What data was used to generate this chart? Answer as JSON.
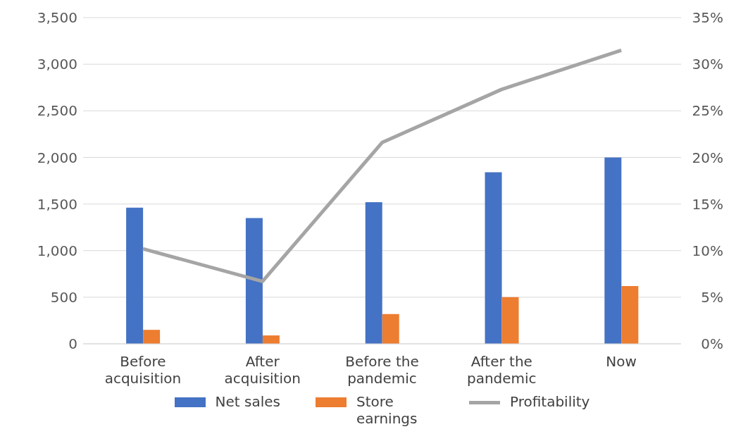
{
  "chart_data": {
    "type": "bar",
    "categories": [
      "Before acquisition",
      "After acquisition",
      "Before the pandemic",
      "After the pandemic",
      "Now"
    ],
    "series": [
      {
        "name": "Net sales",
        "color": "#4472c4",
        "values": [
          1460,
          1350,
          1520,
          1840,
          2000
        ]
      },
      {
        "name": "Store earnings",
        "color": "#ed7d31",
        "values": [
          150,
          90,
          320,
          500,
          620
        ]
      },
      {
        "name": "Profitability",
        "color": "#a5a5a5",
        "type": "line",
        "axis": "y2",
        "values": [
          10.2,
          6.7,
          21.6,
          27.3,
          31.5
        ]
      }
    ],
    "ylim": [
      0,
      3500
    ],
    "yticks": [
      {
        "value": 0,
        "label": "0"
      },
      {
        "value": 500,
        "label": "500"
      },
      {
        "value": 1000,
        "label": "1,000"
      },
      {
        "value": 1500,
        "label": "1,500"
      },
      {
        "value": 2000,
        "label": "2,000"
      },
      {
        "value": 2500,
        "label": "2,500"
      },
      {
        "value": 3000,
        "label": "3,000"
      },
      {
        "value": 3500,
        "label": "3,500"
      }
    ],
    "y2lim": [
      0,
      35
    ],
    "y2ticks": [
      {
        "value": 0,
        "label": "0%"
      },
      {
        "value": 5,
        "label": "5%"
      },
      {
        "value": 10,
        "label": "10%"
      },
      {
        "value": 15,
        "label": "15%"
      },
      {
        "value": 20,
        "label": "20%"
      },
      {
        "value": 25,
        "label": "25%"
      },
      {
        "value": 30,
        "label": "30%"
      },
      {
        "value": 35,
        "label": "35%"
      }
    ],
    "grid": "y",
    "legend": "bottom",
    "marker": "none",
    "line_style": "solid"
  }
}
